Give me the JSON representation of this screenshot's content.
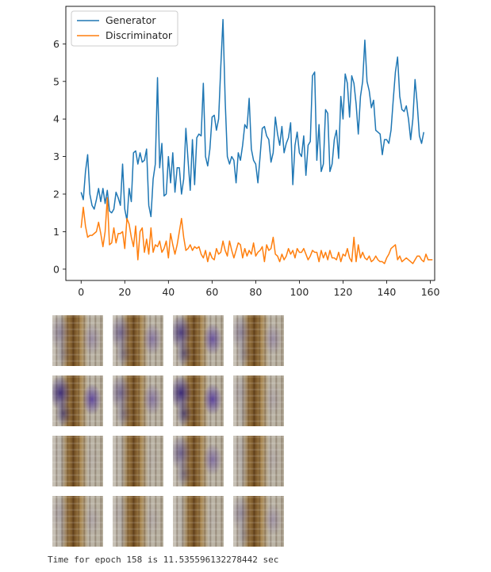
{
  "chart_data": {
    "type": "line",
    "xlim": [
      -7,
      162
    ],
    "ylim": [
      -0.3,
      7.0
    ],
    "xticks": [
      0,
      20,
      40,
      60,
      80,
      100,
      120,
      140,
      160
    ],
    "yticks": [
      0,
      1,
      2,
      3,
      4,
      5,
      6
    ],
    "legend_position": "top-left",
    "grid": false,
    "series": [
      {
        "name": "Generator",
        "color": "#1f77b4",
        "values": [
          2.05,
          1.85,
          2.6,
          3.05,
          2.0,
          1.7,
          1.6,
          1.85,
          2.15,
          1.8,
          2.15,
          1.75,
          2.1,
          1.55,
          1.5,
          1.6,
          2.05,
          1.9,
          1.7,
          2.8,
          1.6,
          1.3,
          2.15,
          1.8,
          3.1,
          3.15,
          2.8,
          3.1,
          2.85,
          2.9,
          3.2,
          1.7,
          1.4,
          2.4,
          2.8,
          5.1,
          2.7,
          3.35,
          1.95,
          2.0,
          3.0,
          2.3,
          3.1,
          2.05,
          2.7,
          2.7,
          2.0,
          2.4,
          3.75,
          2.9,
          2.1,
          3.45,
          2.25,
          3.5,
          3.6,
          3.55,
          4.95,
          3.0,
          2.75,
          3.2,
          4.05,
          4.1,
          3.7,
          4.0,
          5.4,
          6.65,
          4.5,
          3.0,
          2.8,
          3.0,
          2.9,
          2.3,
          3.1,
          2.9,
          3.3,
          3.85,
          3.75,
          4.55,
          3.2,
          2.9,
          2.8,
          2.3,
          3.0,
          3.75,
          3.8,
          3.55,
          3.45,
          2.85,
          3.1,
          4.05,
          3.6,
          3.3,
          3.8,
          3.1,
          3.35,
          3.5,
          3.9,
          2.25,
          3.3,
          3.65,
          3.1,
          3.0,
          3.55,
          2.5,
          3.3,
          3.4,
          5.15,
          5.25,
          2.9,
          3.85,
          2.6,
          2.8,
          4.25,
          4.15,
          2.6,
          2.8,
          3.45,
          3.7,
          2.95,
          4.6,
          4.0,
          5.2,
          4.95,
          4.05,
          5.15,
          4.95,
          4.4,
          3.6,
          4.6,
          5.0,
          6.1,
          5.0,
          4.75,
          4.3,
          4.5,
          3.7,
          3.65,
          3.6,
          3.05,
          3.45,
          3.45,
          3.35,
          3.7,
          4.5,
          5.25,
          5.65,
          4.6,
          4.25,
          4.2,
          4.35,
          4.0,
          3.45,
          4.0,
          5.05,
          4.4,
          3.55,
          3.35,
          3.65
        ]
      },
      {
        "name": "Discriminator",
        "color": "#ff7f0e",
        "values": [
          1.1,
          1.65,
          1.15,
          0.85,
          0.9,
          0.9,
          0.95,
          1.0,
          1.25,
          0.95,
          0.6,
          1.0,
          1.9,
          0.65,
          0.7,
          1.1,
          0.7,
          0.95,
          0.95,
          1.0,
          0.55,
          1.35,
          1.2,
          0.85,
          0.6,
          1.15,
          0.25,
          1.0,
          1.1,
          0.45,
          0.8,
          0.4,
          1.1,
          0.45,
          0.65,
          0.6,
          0.75,
          0.45,
          0.55,
          0.75,
          0.3,
          0.95,
          0.65,
          0.4,
          0.65,
          1.0,
          1.35,
          0.85,
          0.5,
          0.55,
          0.65,
          0.5,
          0.6,
          0.55,
          0.6,
          0.4,
          0.3,
          0.5,
          0.2,
          0.45,
          0.3,
          0.25,
          0.55,
          0.4,
          0.45,
          0.75,
          0.5,
          0.35,
          0.75,
          0.5,
          0.3,
          0.5,
          0.7,
          0.65,
          0.3,
          0.55,
          0.35,
          0.5,
          0.4,
          0.7,
          0.35,
          0.45,
          0.5,
          0.6,
          0.2,
          0.65,
          0.5,
          0.55,
          0.85,
          0.4,
          0.35,
          0.2,
          0.4,
          0.25,
          0.35,
          0.55,
          0.4,
          0.5,
          0.3,
          0.55,
          0.45,
          0.45,
          0.55,
          0.4,
          0.25,
          0.35,
          0.5,
          0.45,
          0.45,
          0.2,
          0.5,
          0.3,
          0.45,
          0.25,
          0.5,
          0.3,
          0.3,
          0.25,
          0.45,
          0.2,
          0.4,
          0.35,
          0.55,
          0.3,
          0.2,
          0.85,
          0.2,
          0.65,
          0.3,
          0.45,
          0.3,
          0.25,
          0.35,
          0.2,
          0.25,
          0.35,
          0.25,
          0.2,
          0.2,
          0.15,
          0.3,
          0.4,
          0.55,
          0.6,
          0.65,
          0.25,
          0.35,
          0.2,
          0.25,
          0.3,
          0.25,
          0.2,
          0.15,
          0.25,
          0.35,
          0.35,
          0.25,
          0.2,
          0.4,
          0.25,
          0.25,
          0.25
        ]
      }
    ]
  },
  "image_grid": {
    "rows": 4,
    "cols": 4,
    "purple": [
      [
        0.35,
        0.55,
        0.85,
        0.35
      ],
      [
        0.95,
        0.55,
        1.0,
        0.15
      ],
      [
        0.05,
        0.05,
        0.6,
        0.1
      ],
      [
        0.15,
        0.1,
        0.05,
        0.3
      ]
    ]
  },
  "footer": {
    "text": "Time for epoch 158 is 11.535596132278442 sec"
  }
}
